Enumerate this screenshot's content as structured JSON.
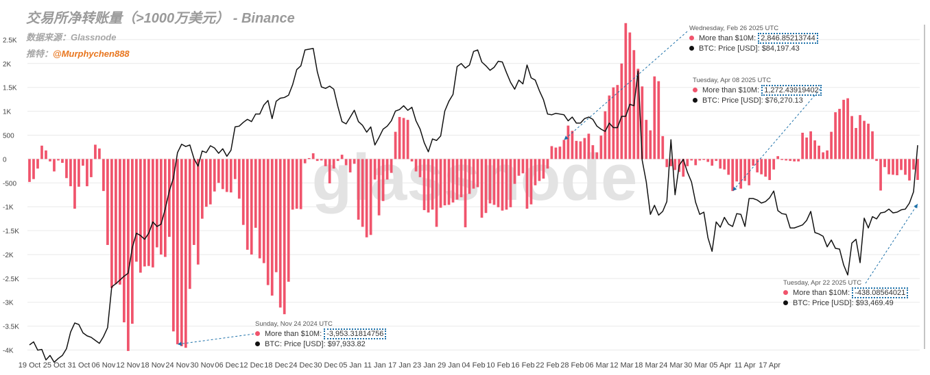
{
  "header": {
    "title": "交易所净转账量（>1000万美元） -  Binance",
    "source": "数据来源：Glassnode",
    "promo_prefix": "推特：",
    "promo_handle": "@Murphychen888"
  },
  "watermark": "glassnode",
  "colors": {
    "bar": "#f0546c",
    "line": "#111111",
    "grid": "#e9e9e9",
    "annotation": "#1a6fa8"
  },
  "tooltips": [
    {
      "date": "Sunday, Nov 24 2024 UTC",
      "series_label": "More than $10M:",
      "series_value": "-3,953.31814756",
      "price_label": "BTC: Price [USD]:",
      "price_value": "$97,933.82"
    },
    {
      "date": "Wednesday, Feb 26 2025 UTC",
      "series_label": "More than $10M:",
      "series_value": "2,846.85213744",
      "price_label": "BTC: Price [USD]:",
      "price_value": "$84,197.43"
    },
    {
      "date": "Tuesday, Apr 08 2025 UTC",
      "series_label": "More than $10M:",
      "series_value": "1,272.43919402",
      "price_label": "BTC: Price [USD]:",
      "price_value": "$76,270.13"
    },
    {
      "date": "Tuesday, Apr 22 2025 UTC",
      "series_label": "More than $10M:",
      "series_value": "-438.08564021",
      "price_label": "BTC: Price [USD]:",
      "price_value": "$93,469.49"
    }
  ],
  "chart_data": {
    "type": "bar",
    "title": "交易所净转账量（>1000万美元） -  Binance",
    "xlabel": "",
    "ylabel": "",
    "ylim": [
      -4050,
      2900
    ],
    "yticks": [
      -4000,
      -3500,
      -3000,
      -2500,
      -2000,
      -1500,
      -1000,
      -500,
      0,
      500,
      1000,
      1500,
      2000,
      2500
    ],
    "ytick_labels": [
      "-4K",
      "-3.5K",
      "-3K",
      "-2.5K",
      "-2K",
      "-1.5K",
      "-1K",
      "-500",
      "0",
      "500",
      "1K",
      "1.5K",
      "2K",
      "2.5K"
    ],
    "xtick_labels": [
      "19 Oct",
      "25 Oct",
      "31 Oct",
      "06 Nov",
      "12 Nov",
      "18 Nov",
      "24 Nov",
      "30 Nov",
      "06 Dec",
      "12 Dec",
      "18 Dec",
      "24 Dec",
      "30 Dec",
      "05 Jan",
      "11 Jan",
      "17 Jan",
      "23 Jan",
      "29 Jan",
      "04 Feb",
      "10 Feb",
      "16 Feb",
      "22 Feb",
      "28 Feb",
      "06 Mar",
      "12 Mar",
      "18 Mar",
      "24 Mar",
      "30 Mar",
      "05 Apr",
      "11 Apr",
      "17 Apr"
    ],
    "x_start": "2024-10-19",
    "x_end": "2025-04-22",
    "series": [
      {
        "name": "More than $10M",
        "type": "bar",
        "values": [
          -480,
          -420,
          -200,
          280,
          180,
          -50,
          -260,
          -30,
          -80,
          -400,
          -570,
          -1040,
          -580,
          -140,
          -570,
          -380,
          300,
          220,
          -670,
          -1800,
          -2700,
          -2620,
          -2630,
          -3420,
          -4020,
          -3450,
          -2150,
          -2380,
          -2250,
          -2240,
          -2270,
          -1850,
          -2000,
          -2050,
          -1630,
          -3610,
          -3880,
          -3920,
          -3953,
          -2720,
          -1800,
          -2210,
          -1250,
          -1000,
          -950,
          -680,
          -500,
          -630,
          -690,
          -700,
          -420,
          -830,
          -1380,
          -1900,
          -2000,
          -1440,
          -2080,
          -2180,
          -2640,
          -2860,
          -2370,
          -3110,
          -3250,
          -2570,
          -1060,
          -1040,
          -1050,
          -90,
          20,
          120,
          -40,
          -30,
          -150,
          -510,
          -200,
          -40,
          90,
          -130,
          -280,
          -100,
          -1270,
          -1420,
          -1640,
          -1590,
          -430,
          -1180,
          -880,
          -430,
          -290,
          570,
          880,
          860,
          820,
          -50,
          -260,
          -380,
          -1070,
          -1120,
          -1060,
          -1420,
          -1020,
          -970,
          -960,
          -910,
          -850,
          -800,
          -1430,
          -730,
          -620,
          -590,
          -1230,
          -1130,
          -930,
          -960,
          -1010,
          -1080,
          -1060,
          -1010,
          -520,
          -350,
          -300,
          -1040,
          -950,
          -550,
          -460,
          -410,
          -200,
          270,
          240,
          260,
          400,
          700,
          590,
          380,
          370,
          440,
          530,
          290,
          140,
          490,
          1000,
          1330,
          1500,
          1550,
          2000,
          2846,
          2650,
          2280,
          1890,
          1520,
          820,
          600,
          1730,
          1630,
          480,
          -170,
          -150,
          -230,
          -270,
          -370,
          -150,
          -30,
          -130,
          -30,
          -20,
          -60,
          -140,
          -40,
          -200,
          -220,
          -330,
          -670,
          -470,
          -620,
          -460,
          -550,
          -140,
          -280,
          -320,
          -370,
          -440,
          -220,
          60,
          -20,
          -30,
          -40,
          -50,
          -50,
          550,
          450,
          580,
          390,
          280,
          140,
          180,
          570,
          980,
          1050,
          1240,
          1272,
          900,
          650,
          920,
          800,
          740,
          580,
          -40,
          -660,
          -170,
          -320,
          -330,
          -340,
          -230,
          -330,
          -450,
          -220,
          -438
        ]
      },
      {
        "name": "BTC: Price [USD]",
        "type": "line",
        "ylim": [
          66000,
          110000
        ],
        "values": [
          67000,
          67400,
          66300,
          66400,
          65000,
          65600,
          64700,
          65200,
          65600,
          66500,
          68700,
          69900,
          69700,
          68600,
          68200,
          68000,
          67600,
          67200,
          68100,
          69300,
          74700,
          75100,
          75600,
          76100,
          76500,
          79900,
          81800,
          81500,
          81000,
          81800,
          83300,
          82700,
          83000,
          85000,
          87400,
          89100,
          92500,
          93600,
          93300,
          93500,
          91700,
          90700,
          92700,
          92500,
          93400,
          93100,
          92400,
          93000,
          92000,
          92800,
          95900,
          96000,
          96500,
          96900,
          96600,
          97600,
          97600,
          98800,
          99400,
          97000,
          99300,
          99700,
          99800,
          100100,
          101500,
          103500,
          104000,
          106100,
          106200,
          106300,
          103200,
          101200,
          101000,
          101300,
          100900,
          98600,
          96600,
          96300,
          97200,
          98100,
          96600,
          96100,
          95200,
          95900,
          93500,
          94500,
          95600,
          96000,
          96700,
          98000,
          98200,
          98700,
          98100,
          98500,
          96700,
          95600,
          93800,
          92600,
          94300,
          94100,
          94700,
          98000,
          99300,
          100200,
          103900,
          104300,
          103700,
          104100,
          105900,
          106100,
          104500,
          104000,
          103400,
          103800,
          104600,
          104500,
          103100,
          101800,
          100900,
          102100,
          101600,
          104100,
          102400,
          102100,
          100700,
          99500,
          97600,
          97500,
          97700,
          97600,
          97500,
          96700,
          97200,
          96400,
          96400,
          97000,
          97200,
          96900,
          96000,
          95600,
          95300,
          96400,
          95800,
          95800,
          97300,
          97300,
          98900,
          98700,
          103300,
          91500,
          88600,
          84300,
          85500,
          84200,
          84700,
          86000,
          94200,
          86900,
          90800,
          91600,
          89900,
          88600,
          85900,
          84300,
          84600,
          81200,
          79400,
          83300,
          82600,
          83900,
          83000,
          82700,
          84400,
          84300,
          82700,
          86400,
          86400,
          86200,
          85800,
          86000,
          86500,
          87400,
          84800,
          84400,
          84300,
          82500,
          82500,
          82700,
          82900,
          83500,
          84700,
          81900,
          81700,
          81400,
          80000,
          80900,
          79800,
          79700,
          77600,
          76270,
          80500,
          81000,
          77900,
          83800,
          82500,
          84000,
          83700,
          84500,
          84600,
          85000,
          84500,
          84600,
          84900,
          85000,
          85800,
          87300,
          93469
        ]
      }
    ]
  }
}
